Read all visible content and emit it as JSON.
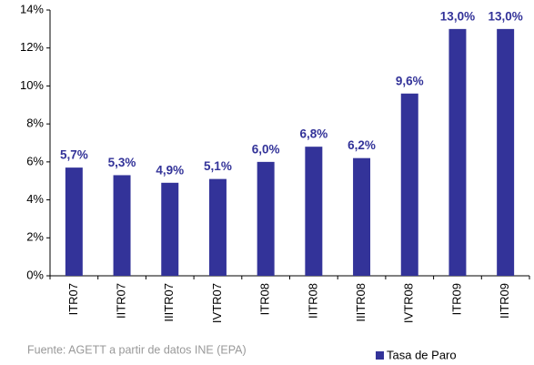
{
  "chart_data": {
    "type": "bar",
    "categories": [
      "ITR07",
      "IITR07",
      "IIITR07",
      "IVTR07",
      "ITR08",
      "IITR08",
      "IIITR08",
      "IVTR08",
      "ITR09",
      "IITR09"
    ],
    "series": [
      {
        "name": "Tasa de Paro",
        "color": "#333399",
        "values": [
          5.7,
          5.3,
          4.9,
          5.1,
          6.0,
          6.8,
          6.2,
          9.6,
          13.0,
          13.0
        ],
        "value_labels": [
          "5,7%",
          "5,3%",
          "4,9%",
          "5,1%",
          "6,0%",
          "6,8%",
          "6,2%",
          "9,6%",
          "13,0%",
          "13,0%"
        ]
      }
    ],
    "ylim": [
      0,
      14
    ],
    "yticks": [
      {
        "value": 0,
        "label": "0%"
      },
      {
        "value": 2,
        "label": "2%"
      },
      {
        "value": 4,
        "label": "4%"
      },
      {
        "value": 6,
        "label": "6%"
      },
      {
        "value": 8,
        "label": "8%"
      },
      {
        "value": 10,
        "label": "10%"
      },
      {
        "value": 12,
        "label": "12%"
      },
      {
        "value": 14,
        "label": "14%"
      }
    ],
    "grid": false,
    "legend": "bottom-right",
    "source": "Fuente: AGETT a partir de datos INE (EPA)"
  }
}
